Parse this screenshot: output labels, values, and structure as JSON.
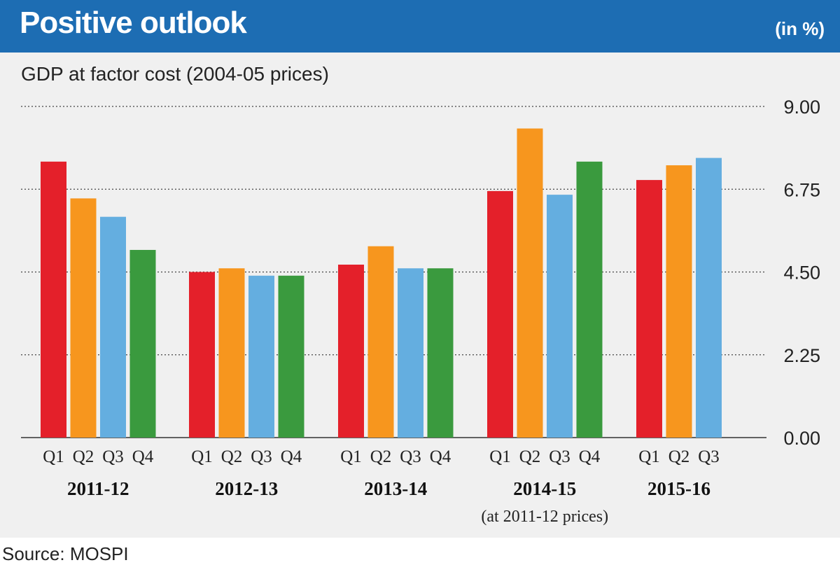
{
  "header": {
    "title": "Positive outlook",
    "unit": "(in %)"
  },
  "subtitle": "GDP at factor cost (2004-05 prices)",
  "source": "Source: MOSPI",
  "colors": {
    "header_bg": "#1d6db3",
    "panel_bg": "#f0f0f0",
    "Q1": "#e4202a",
    "Q2": "#f7961e",
    "Q3": "#64aee0",
    "Q4": "#3a9a3e"
  },
  "chart_data": {
    "type": "bar",
    "title": "Positive outlook",
    "subtitle": "GDP at factor cost (2004-05 prices)",
    "unit": "(in %)",
    "ylim": [
      0,
      9
    ],
    "yticks": [
      "9.00",
      "6.75",
      "4.50",
      "2.25",
      "0.00"
    ],
    "ytick_values": [
      9,
      6.75,
      4.5,
      2.25,
      0
    ],
    "grid": true,
    "grid_style": "dotted",
    "groups": [
      {
        "label": "2011-12",
        "quarters": [
          "Q1",
          "Q2",
          "Q3",
          "Q4"
        ],
        "values": [
          7.5,
          6.5,
          6.0,
          5.1
        ]
      },
      {
        "label": "2012-13",
        "quarters": [
          "Q1",
          "Q2",
          "Q3",
          "Q4"
        ],
        "values": [
          4.5,
          4.6,
          4.4,
          4.4
        ]
      },
      {
        "label": "2013-14",
        "quarters": [
          "Q1",
          "Q2",
          "Q3",
          "Q4"
        ],
        "values": [
          4.7,
          5.2,
          4.6,
          4.6
        ]
      },
      {
        "label": "2014-15",
        "note": "(at 2011-12 prices)",
        "quarters": [
          "Q1",
          "Q2",
          "Q3",
          "Q4"
        ],
        "values": [
          6.7,
          8.4,
          6.6,
          7.5
        ]
      },
      {
        "label": "2015-16",
        "quarters": [
          "Q1",
          "Q2",
          "Q3"
        ],
        "values": [
          7.0,
          7.4,
          7.6
        ]
      }
    ]
  }
}
